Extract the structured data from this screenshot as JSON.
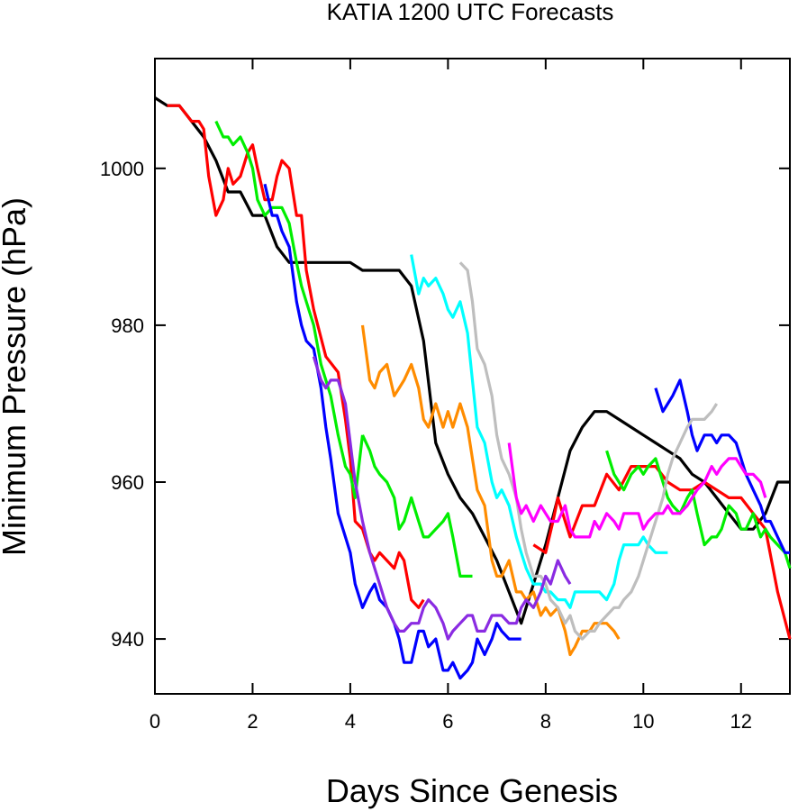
{
  "chart_data": {
    "type": "line",
    "title": "KATIA 1200 UTC Forecasts",
    "xlabel": "Days Since Genesis",
    "ylabel": "Minimum Pressure (hPa)",
    "xlim": [
      0,
      13
    ],
    "ylim": [
      933,
      1014
    ],
    "xticks": [
      0,
      2,
      4,
      6,
      8,
      10,
      12
    ],
    "yticks": [
      940,
      960,
      980,
      1000
    ],
    "grid": false,
    "legend": "none",
    "series": [
      {
        "color": "#000000",
        "x": [
          0,
          0.25,
          0.5,
          0.75,
          1,
          1.25,
          1.5,
          1.75,
          2,
          2.25,
          2.5,
          2.75,
          3,
          3.25,
          3.5,
          3.75,
          4,
          4.25,
          4.5,
          4.75,
          5,
          5.25,
          5.5,
          5.75,
          6,
          6.25,
          6.5,
          6.75,
          7,
          7.25,
          7.5,
          7.75,
          8,
          8.25,
          8.5,
          8.75,
          9,
          9.25,
          9.5,
          9.75,
          10,
          10.25,
          10.5,
          10.75,
          11,
          11.25,
          11.5,
          11.75,
          12,
          12.25,
          12.5,
          12.75,
          13
        ],
        "y": [
          1009,
          1008,
          1008,
          1006,
          1004,
          1001,
          997,
          997,
          994,
          994,
          990,
          988,
          988,
          988,
          988,
          988,
          988,
          987,
          987,
          987,
          987,
          985,
          978,
          965,
          961,
          958,
          956,
          953,
          950,
          946,
          942,
          947,
          952,
          958,
          964,
          967,
          969,
          969,
          968,
          967,
          966,
          965,
          964,
          963,
          961,
          960,
          958,
          956,
          954,
          954,
          956,
          960,
          960
        ]
      },
      {
        "color": "#ff0000",
        "x": [
          0.25,
          0.5,
          0.75,
          0.9,
          1,
          1.1,
          1.25,
          1.4,
          1.5,
          1.6,
          1.75,
          1.9,
          2,
          2.1,
          2.25,
          2.4,
          2.5,
          2.6,
          2.75,
          2.9,
          3,
          3.1,
          3.25,
          3.5,
          3.75,
          3.9,
          4,
          4.1,
          4.25,
          4.4,
          4.5,
          4.6,
          4.75,
          4.9,
          5,
          5.1,
          5.25,
          5.4,
          5.5
        ],
        "y": [
          1008,
          1008,
          1006,
          1006,
          1005,
          999,
          994,
          996,
          1000,
          998,
          999,
          1002,
          1003,
          1000,
          996,
          996,
          999,
          1001,
          1000,
          994,
          994,
          987,
          982,
          976,
          974,
          968,
          963,
          955,
          954,
          951,
          950,
          951,
          950,
          949,
          951,
          950,
          945,
          944,
          945
        ]
      },
      {
        "color": "#ff0000",
        "x": [
          7.75,
          8,
          8.15,
          8.25,
          8.4,
          8.5,
          8.75,
          9,
          9.25,
          9.5,
          9.75,
          10,
          10.25,
          10.5,
          10.75,
          11,
          11.25,
          11.5,
          11.75,
          12,
          12.25,
          12.5,
          12.75,
          13
        ],
        "y": [
          952,
          951,
          955,
          958,
          955,
          953,
          957,
          957,
          961,
          959,
          962,
          962,
          962,
          960,
          959,
          959,
          960,
          959,
          958,
          958,
          956,
          954,
          946,
          940
        ]
      },
      {
        "color": "#00ee00",
        "x": [
          1.25,
          1.4,
          1.5,
          1.6,
          1.75,
          1.9,
          2,
          2.1,
          2.25,
          2.4,
          2.5,
          2.6,
          2.75,
          2.9,
          3,
          3.1,
          3.25,
          3.4,
          3.5,
          3.6,
          3.75,
          3.9,
          4,
          4.1,
          4.25
        ],
        "y": [
          1006,
          1004,
          1004,
          1003,
          1004,
          1002,
          1000,
          996,
          994,
          995,
          995,
          995,
          993,
          988,
          985,
          983,
          980,
          975,
          973,
          971,
          966,
          962,
          961,
          958,
          966
        ]
      },
      {
        "color": "#00ee00",
        "x": [
          4.25,
          4.4,
          4.5,
          4.6,
          4.75,
          4.9,
          5,
          5.1,
          5.25,
          5.4,
          5.5,
          5.6,
          5.75,
          5.9,
          6,
          6.1,
          6.25,
          6.4,
          6.5
        ],
        "y": [
          966,
          964,
          962,
          961,
          960,
          958,
          954,
          955,
          958,
          955,
          953,
          953,
          954,
          955,
          956,
          953,
          948,
          948,
          948
        ]
      },
      {
        "color": "#00ee00",
        "x": [
          9.25,
          9.4,
          9.5,
          9.6,
          9.75,
          9.9,
          10,
          10.1,
          10.25,
          10.4,
          10.5,
          10.6,
          10.75,
          10.9,
          11,
          11.1,
          11.25,
          11.4,
          11.5,
          11.6,
          11.75,
          11.9,
          12,
          12.1,
          12.25,
          12.4,
          12.5,
          12.6,
          12.75,
          12.9,
          13
        ],
        "y": [
          964,
          961,
          960,
          959,
          961,
          962,
          961,
          962,
          963,
          960,
          958,
          957,
          956,
          958,
          959,
          956,
          952,
          953,
          953,
          954,
          957,
          956,
          954,
          954,
          956,
          953,
          954,
          953,
          952,
          951,
          949
        ]
      },
      {
        "color": "#0000ff",
        "x": [
          2.25,
          2.4,
          2.5,
          2.6,
          2.75,
          2.9,
          3,
          3.1,
          3.25,
          3.4,
          3.5,
          3.6,
          3.75,
          3.9,
          4,
          4.1,
          4.25,
          4.4,
          4.5,
          4.6,
          4.75,
          4.9,
          5,
          5.1,
          5.25,
          5.4,
          5.5,
          5.6,
          5.75,
          5.9,
          6,
          6.1,
          6.25,
          6.4,
          6.5,
          6.6,
          6.75,
          6.9,
          7,
          7.1,
          7.25,
          7.4,
          7.5
        ],
        "y": [
          998,
          994,
          994,
          992,
          990,
          983,
          980,
          978,
          977,
          972,
          967,
          963,
          956,
          953,
          951,
          947,
          944,
          946,
          947,
          945,
          944,
          942,
          940,
          937,
          937,
          941,
          941,
          939,
          940,
          936,
          936,
          937,
          935,
          936,
          937,
          940,
          938,
          940,
          942,
          941,
          940,
          940,
          940
        ]
      },
      {
        "color": "#0000ff",
        "x": [
          10.25,
          10.4,
          10.5,
          10.6,
          10.75,
          10.9,
          11,
          11.1,
          11.25,
          11.4,
          11.5,
          11.6,
          11.75,
          11.9,
          12,
          12.1,
          12.25,
          12.4,
          12.5,
          12.6,
          12.75,
          12.9,
          13
        ],
        "y": [
          972,
          969,
          970,
          971,
          973,
          969,
          966,
          964,
          966,
          966,
          965,
          966,
          966,
          965,
          963,
          961,
          959,
          957,
          955,
          955,
          953,
          951,
          951
        ]
      },
      {
        "color": "#ff8c00",
        "x": [
          4.25,
          4.4,
          4.5,
          4.6,
          4.75,
          4.9,
          5,
          5.1,
          5.25,
          5.4,
          5.5,
          5.6,
          5.75,
          5.9,
          6,
          6.1,
          6.25,
          6.4,
          6.5,
          6.6,
          6.75,
          6.9,
          7,
          7.1,
          7.25,
          7.4,
          7.5,
          7.6,
          7.75,
          7.9,
          8,
          8.1,
          8.25,
          8.4,
          8.5,
          8.6,
          8.75,
          8.9,
          9,
          9.1,
          9.25,
          9.4,
          9.5
        ],
        "y": [
          980,
          973,
          972,
          974,
          975,
          971,
          972,
          973,
          975,
          972,
          968,
          967,
          970,
          967,
          969,
          967,
          970,
          967,
          963,
          959,
          957,
          950,
          948,
          948,
          950,
          946,
          946,
          945,
          946,
          943,
          944,
          943,
          944,
          941,
          938,
          939,
          941,
          941,
          942,
          942,
          942,
          941,
          940
        ]
      },
      {
        "color": "#00ffff",
        "x": [
          5.25,
          5.4,
          5.5,
          5.6,
          5.75,
          5.9,
          6,
          6.1,
          6.25,
          6.4,
          6.5,
          6.6,
          6.75,
          6.9,
          7,
          7.1,
          7.25,
          7.4,
          7.5,
          7.6,
          7.75,
          7.9,
          8,
          8.1,
          8.25,
          8.4,
          8.5,
          8.6,
          8.75,
          8.9,
          9,
          9.1,
          9.25,
          9.4,
          9.5,
          9.6,
          9.75,
          9.9,
          10,
          10.1,
          10.25,
          10.4,
          10.5
        ],
        "y": [
          989,
          984,
          986,
          985,
          986,
          984,
          982,
          981,
          983,
          979,
          973,
          967,
          965,
          960,
          958,
          959,
          957,
          953,
          951,
          949,
          947,
          947,
          946,
          946,
          945,
          945,
          944,
          946,
          946,
          946,
          946,
          946,
          945,
          947,
          950,
          952,
          952,
          952,
          953,
          952,
          951,
          951,
          951
        ]
      },
      {
        "color": "#bebebe",
        "x": [
          6.25,
          6.4,
          6.5,
          6.6,
          6.75,
          6.9,
          7,
          7.1,
          7.25,
          7.4,
          7.5,
          7.6,
          7.75,
          7.9,
          8,
          8.1,
          8.25,
          8.4,
          8.5,
          8.6,
          8.75,
          8.9,
          9,
          9.1,
          9.25,
          9.4,
          9.5,
          9.6,
          9.75,
          9.9,
          10,
          10.1,
          10.25,
          10.4,
          10.5,
          10.6,
          10.75,
          10.9,
          11,
          11.1,
          11.25,
          11.4,
          11.5
        ],
        "y": [
          988,
          987,
          983,
          977,
          975,
          971,
          966,
          963,
          961,
          958,
          954,
          951,
          948,
          948,
          947,
          945,
          944,
          942,
          943,
          941,
          940,
          941,
          941,
          942,
          943,
          944,
          944,
          945,
          946,
          948,
          950,
          952,
          955,
          958,
          961,
          963,
          965,
          967,
          968,
          968,
          968,
          969,
          970
        ]
      },
      {
        "color": "#ff00ff",
        "x": [
          7.25,
          7.4,
          7.5,
          7.6,
          7.75,
          7.9,
          8,
          8.1,
          8.25,
          8.4,
          8.5,
          8.6,
          8.75,
          8.9,
          9,
          9.1,
          9.25,
          9.4,
          9.5,
          9.6,
          9.75,
          9.9,
          10,
          10.1,
          10.25,
          10.4,
          10.5,
          10.6,
          10.75,
          10.9,
          11,
          11.1,
          11.25,
          11.4,
          11.5,
          11.6,
          11.75,
          11.9,
          12,
          12.1,
          12.25,
          12.4,
          12.5
        ],
        "y": [
          965,
          958,
          956,
          957,
          955,
          957,
          956,
          955,
          955,
          957,
          954,
          953,
          953,
          953,
          955,
          954,
          956,
          955,
          954,
          956,
          956,
          956,
          954,
          955,
          956,
          956,
          957,
          956,
          956,
          957,
          958,
          959,
          960,
          962,
          961,
          962,
          963,
          963,
          962,
          961,
          961,
          960,
          958
        ]
      },
      {
        "color": "#8a2be2",
        "x": [
          3.25,
          3.4,
          3.5,
          3.6,
          3.75,
          3.9,
          4,
          4.1,
          4.25,
          4.4,
          4.5,
          4.6,
          4.75,
          4.9,
          5,
          5.1,
          5.25,
          5.4,
          5.5,
          5.6,
          5.75,
          5.9,
          6,
          6.1,
          6.25,
          6.4,
          6.5,
          6.6,
          6.75,
          6.9,
          7,
          7.1,
          7.25,
          7.4,
          7.5,
          7.6,
          7.75,
          7.9,
          8,
          8.1,
          8.25,
          8.4,
          8.5
        ],
        "y": [
          976,
          973,
          972,
          973,
          973,
          970,
          965,
          960,
          955,
          951,
          949,
          947,
          944,
          942,
          941,
          941,
          942,
          942,
          944,
          945,
          944,
          942,
          940,
          941,
          942,
          943,
          943,
          941,
          941,
          943,
          943,
          943,
          942,
          942,
          944,
          945,
          944,
          946,
          948,
          947,
          950,
          948,
          947
        ]
      }
    ]
  }
}
